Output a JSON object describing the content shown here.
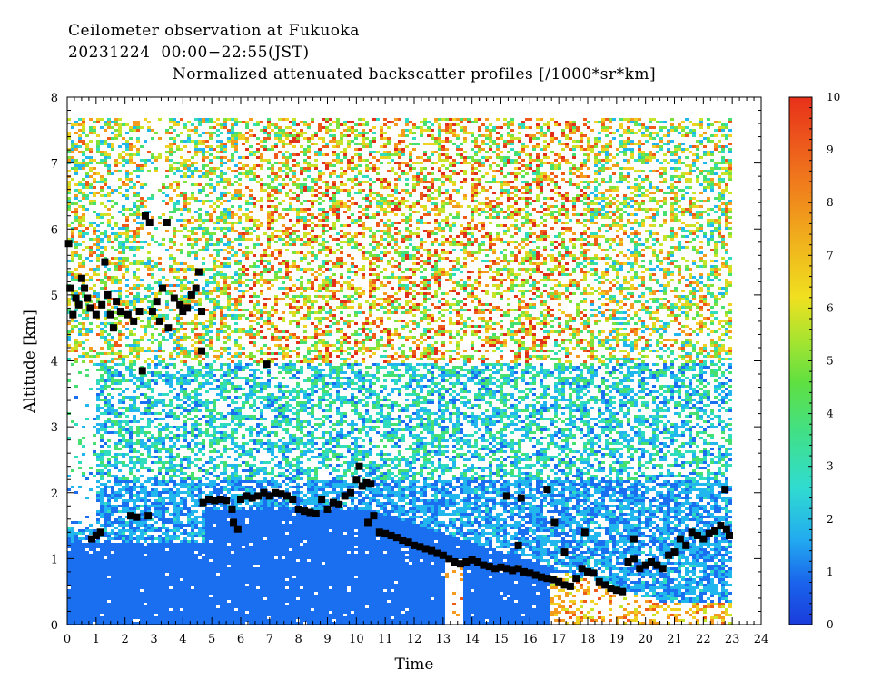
{
  "header": {
    "line1": "Ceilometer observation at Fukuoka",
    "line2": "20231224  00:00−22:55(JST)"
  },
  "chart_data": {
    "type": "heatmap",
    "title": "Normalized attenuated backscatter profiles [/1000*sr*km]",
    "xlabel": "Time",
    "ylabel": "Altitude [km]",
    "xlim": [
      0,
      24
    ],
    "ylim": [
      0,
      8
    ],
    "x_ticks": [
      "0",
      "1",
      "2",
      "3",
      "4",
      "5",
      "6",
      "7",
      "8",
      "9",
      "10",
      "11",
      "12",
      "13",
      "14",
      "15",
      "16",
      "17",
      "18",
      "19",
      "20",
      "21",
      "22",
      "23",
      "24"
    ],
    "y_ticks": [
      "0",
      "1",
      "2",
      "3",
      "4",
      "5",
      "6",
      "7",
      "8"
    ],
    "colorbar": {
      "range": [
        0,
        10
      ],
      "ticks": [
        "0",
        "1",
        "2",
        "3",
        "4",
        "5",
        "6",
        "7",
        "8",
        "9",
        "10"
      ],
      "colors": [
        "#1436d8",
        "#1a6ef0",
        "#22b6ee",
        "#30dcbe",
        "#45e070",
        "#7ee23c",
        "#c8e428",
        "#f0d020",
        "#f49a1c",
        "#ee5a18",
        "#e0301a"
      ]
    },
    "grid": false,
    "cloud_base_markers": [
      [
        0.05,
        5.78
      ],
      [
        0.1,
        5.1
      ],
      [
        0.2,
        4.7
      ],
      [
        0.3,
        4.95
      ],
      [
        0.4,
        4.85
      ],
      [
        0.5,
        5.25
      ],
      [
        0.6,
        5.1
      ],
      [
        0.7,
        4.95
      ],
      [
        0.8,
        4.8
      ],
      [
        1.0,
        4.7
      ],
      [
        1.2,
        4.85
      ],
      [
        1.3,
        5.5
      ],
      [
        1.4,
        5.0
      ],
      [
        1.5,
        4.7
      ],
      [
        1.6,
        4.5
      ],
      [
        1.7,
        4.9
      ],
      [
        1.85,
        4.75
      ],
      [
        2.1,
        4.7
      ],
      [
        2.3,
        4.6
      ],
      [
        2.5,
        4.75
      ],
      [
        2.6,
        3.85
      ],
      [
        2.7,
        6.2
      ],
      [
        2.85,
        6.1
      ],
      [
        2.95,
        4.75
      ],
      [
        3.1,
        4.9
      ],
      [
        3.2,
        4.6
      ],
      [
        3.3,
        5.1
      ],
      [
        3.45,
        6.1
      ],
      [
        3.5,
        4.5
      ],
      [
        3.7,
        4.95
      ],
      [
        3.9,
        4.85
      ],
      [
        4.0,
        4.75
      ],
      [
        4.15,
        4.8
      ],
      [
        4.3,
        5.0
      ],
      [
        4.45,
        5.1
      ],
      [
        4.55,
        5.35
      ],
      [
        4.65,
        4.15
      ],
      [
        4.65,
        4.75
      ],
      [
        0.85,
        1.3
      ],
      [
        1.0,
        1.35
      ],
      [
        1.15,
        1.4
      ],
      [
        2.2,
        1.65
      ],
      [
        2.4,
        1.63
      ],
      [
        2.8,
        1.65
      ],
      [
        6.9,
        3.95
      ],
      [
        4.7,
        1.85
      ],
      [
        4.9,
        1.9
      ],
      [
        5.1,
        1.88
      ],
      [
        5.3,
        1.9
      ],
      [
        5.5,
        1.88
      ],
      [
        5.7,
        1.75
      ],
      [
        5.75,
        1.55
      ],
      [
        5.9,
        1.45
      ],
      [
        6.0,
        1.9
      ],
      [
        6.2,
        1.95
      ],
      [
        6.4,
        1.92
      ],
      [
        6.6,
        1.95
      ],
      [
        6.8,
        2.0
      ],
      [
        7.0,
        1.95
      ],
      [
        7.2,
        2.0
      ],
      [
        7.4,
        1.98
      ],
      [
        7.6,
        1.95
      ],
      [
        7.8,
        1.9
      ],
      [
        8.0,
        1.75
      ],
      [
        8.2,
        1.72
      ],
      [
        8.4,
        1.7
      ],
      [
        8.6,
        1.68
      ],
      [
        8.8,
        1.9
      ],
      [
        9.0,
        1.75
      ],
      [
        9.2,
        1.85
      ],
      [
        9.4,
        1.82
      ],
      [
        9.6,
        1.95
      ],
      [
        9.8,
        2.0
      ],
      [
        10.0,
        2.2
      ],
      [
        10.1,
        2.4
      ],
      [
        10.2,
        2.1
      ],
      [
        10.35,
        2.15
      ],
      [
        10.5,
        2.13
      ],
      [
        10.4,
        1.55
      ],
      [
        10.6,
        1.65
      ],
      [
        10.8,
        1.4
      ],
      [
        11.0,
        1.38
      ],
      [
        11.2,
        1.35
      ],
      [
        11.4,
        1.32
      ],
      [
        11.6,
        1.28
      ],
      [
        11.8,
        1.25
      ],
      [
        12.0,
        1.2
      ],
      [
        12.2,
        1.18
      ],
      [
        12.4,
        1.15
      ],
      [
        12.6,
        1.12
      ],
      [
        12.8,
        1.08
      ],
      [
        13.0,
        1.05
      ],
      [
        13.2,
        1.0
      ],
      [
        13.4,
        0.95
      ],
      [
        13.6,
        0.92
      ],
      [
        13.8,
        0.95
      ],
      [
        14.0,
        0.98
      ],
      [
        14.2,
        0.95
      ],
      [
        14.4,
        0.9
      ],
      [
        14.6,
        0.88
      ],
      [
        14.8,
        0.85
      ],
      [
        15.0,
        0.87
      ],
      [
        15.2,
        0.85
      ],
      [
        15.4,
        0.82
      ],
      [
        15.6,
        0.85
      ],
      [
        15.8,
        0.8
      ],
      [
        16.0,
        0.78
      ],
      [
        16.2,
        0.75
      ],
      [
        16.4,
        0.72
      ],
      [
        16.6,
        0.7
      ],
      [
        16.8,
        0.68
      ],
      [
        17.0,
        0.65
      ],
      [
        17.2,
        0.6
      ],
      [
        17.4,
        0.58
      ],
      [
        17.6,
        0.7
      ],
      [
        17.8,
        0.85
      ],
      [
        18.0,
        0.8
      ],
      [
        18.2,
        0.78
      ],
      [
        18.4,
        0.65
      ],
      [
        18.6,
        0.6
      ],
      [
        18.8,
        0.55
      ],
      [
        19.0,
        0.52
      ],
      [
        19.2,
        0.5
      ],
      [
        19.4,
        0.95
      ],
      [
        19.6,
        1.0
      ],
      [
        19.8,
        0.85
      ],
      [
        20.0,
        0.9
      ],
      [
        20.2,
        0.95
      ],
      [
        20.4,
        0.9
      ],
      [
        20.6,
        0.85
      ],
      [
        20.8,
        1.05
      ],
      [
        21.0,
        1.1
      ],
      [
        21.2,
        1.3
      ],
      [
        21.4,
        1.2
      ],
      [
        21.6,
        1.4
      ],
      [
        21.8,
        1.35
      ],
      [
        22.0,
        1.3
      ],
      [
        22.2,
        1.38
      ],
      [
        22.4,
        1.42
      ],
      [
        22.6,
        1.5
      ],
      [
        22.8,
        1.45
      ],
      [
        22.9,
        1.35
      ],
      [
        15.2,
        1.95
      ],
      [
        15.7,
        1.92
      ],
      [
        15.6,
        1.2
      ],
      [
        16.6,
        2.05
      ],
      [
        16.85,
        1.55
      ],
      [
        17.2,
        1.1
      ],
      [
        17.9,
        1.4
      ],
      [
        19.6,
        1.3
      ],
      [
        22.75,
        2.05
      ]
    ]
  }
}
